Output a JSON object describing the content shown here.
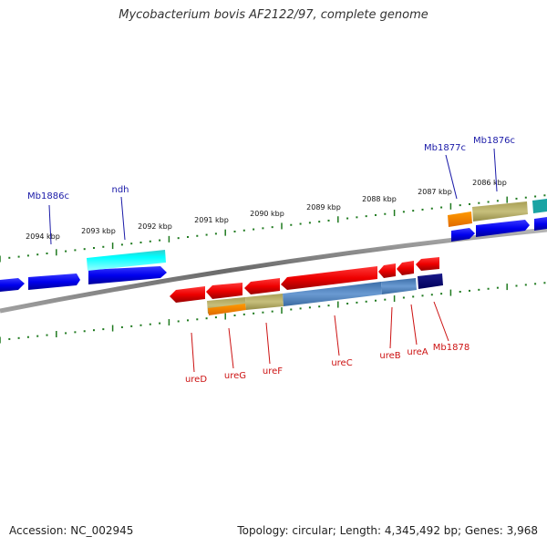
{
  "title": "Mycobacterium bovis AF2122/97, complete genome",
  "footer": {
    "accession": "Accession: NC_002945",
    "summary": "Topology: circular; Length: 4,345,492 bp; Genes: 3,968"
  },
  "colors": {
    "backbone": "#7a7a7a",
    "tick": "#1f7a1f",
    "forward_label": "#1a1aa8",
    "reverse_label": "#cc1111"
  },
  "scale_labels": [
    "2094 kbp",
    "2093 kbp",
    "2092 kbp",
    "2091 kbp",
    "2090 kbp",
    "2089 kbp",
    "2088 kbp",
    "2087 kbp",
    "2086 kbp"
  ],
  "forward_labels": [
    "Mb1886c",
    "ndh",
    "Mb1877c",
    "Mb1876c"
  ],
  "reverse_labels": [
    "ureD",
    "ureG",
    "ureF",
    "ureC",
    "ureB",
    "ureA",
    "Mb1878"
  ]
}
